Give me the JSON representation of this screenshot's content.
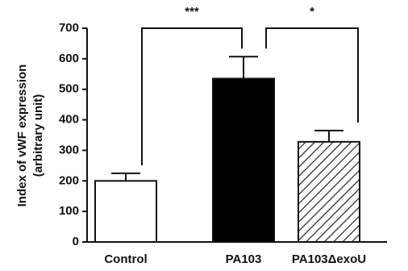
{
  "chart_data": {
    "type": "bar",
    "y_label_lines": [
      "Index of vWF expression",
      "(arbitrary unit)"
    ],
    "categories": [
      "Control",
      "PA103",
      "PA103ΔexoU"
    ],
    "values": [
      200,
      535,
      328
    ],
    "errors": [
      25,
      72,
      37
    ],
    "colors": [
      "#ffffff",
      "#000000",
      "#ffffff"
    ],
    "patterns": [
      "solid",
      "solid",
      "hatch"
    ],
    "ylim": [
      0,
      700
    ],
    "yticks": [
      0,
      100,
      200,
      300,
      400,
      500,
      600,
      700
    ],
    "annotations": [
      {
        "text": "***",
        "from": 0,
        "to": 1
      },
      {
        "text": "*",
        "from": 1,
        "to": 2
      }
    ]
  }
}
